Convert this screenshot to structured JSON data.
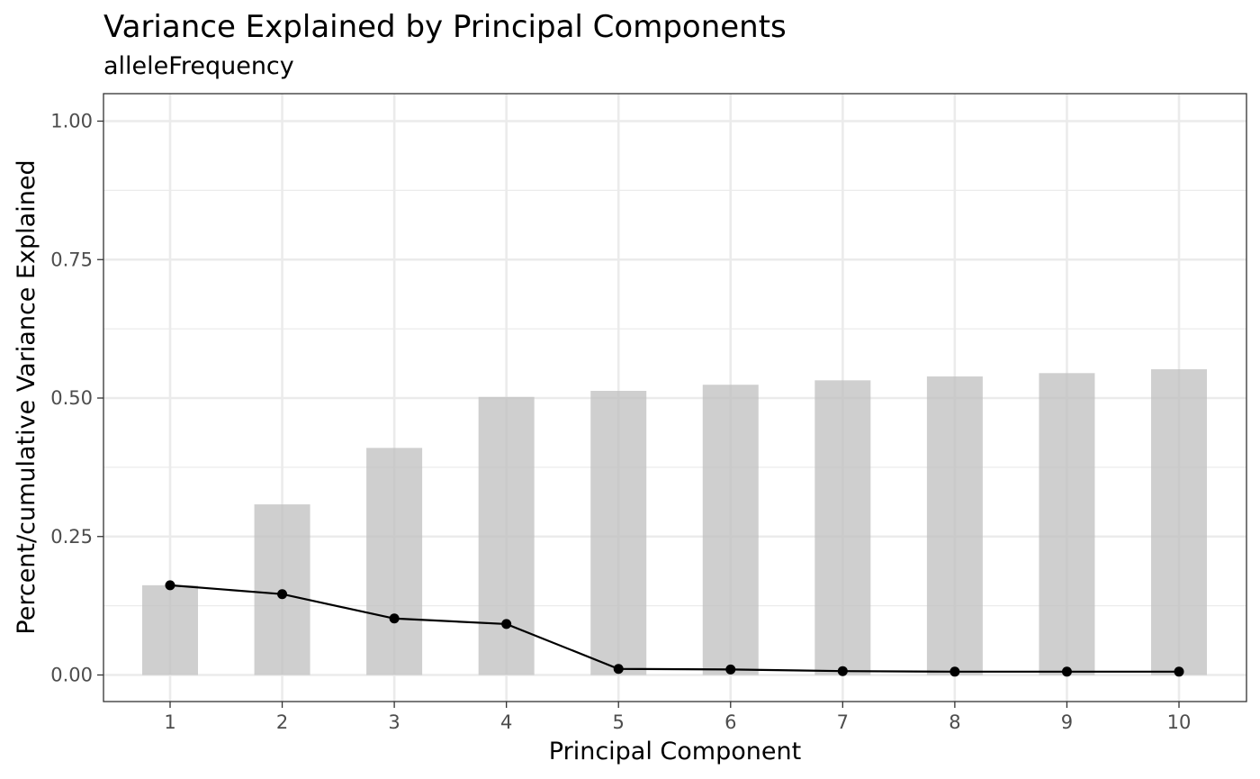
{
  "chart_data": {
    "type": "bar",
    "title": "Variance Explained by Principal Components",
    "subtitle": "alleleFrequency",
    "xlabel": "Principal Component",
    "ylabel": "Percent/cumulative Variance Explained",
    "categories": [
      "1",
      "2",
      "3",
      "4",
      "5",
      "6",
      "7",
      "8",
      "9",
      "10"
    ],
    "ylim": [
      0,
      1
    ],
    "yticks": [
      "0.00",
      "0.25",
      "0.50",
      "0.75",
      "1.00"
    ],
    "grid": true,
    "legend": "none",
    "series": [
      {
        "kind": "bar",
        "values": [
          0.162,
          0.308,
          0.41,
          0.502,
          0.513,
          0.524,
          0.532,
          0.539,
          0.545,
          0.552
        ],
        "color": "#bfbfbf"
      },
      {
        "kind": "line",
        "values": [
          0.162,
          0.146,
          0.102,
          0.092,
          0.011,
          0.01,
          0.007,
          0.006,
          0.006,
          0.006
        ],
        "color": "#000000"
      }
    ]
  }
}
